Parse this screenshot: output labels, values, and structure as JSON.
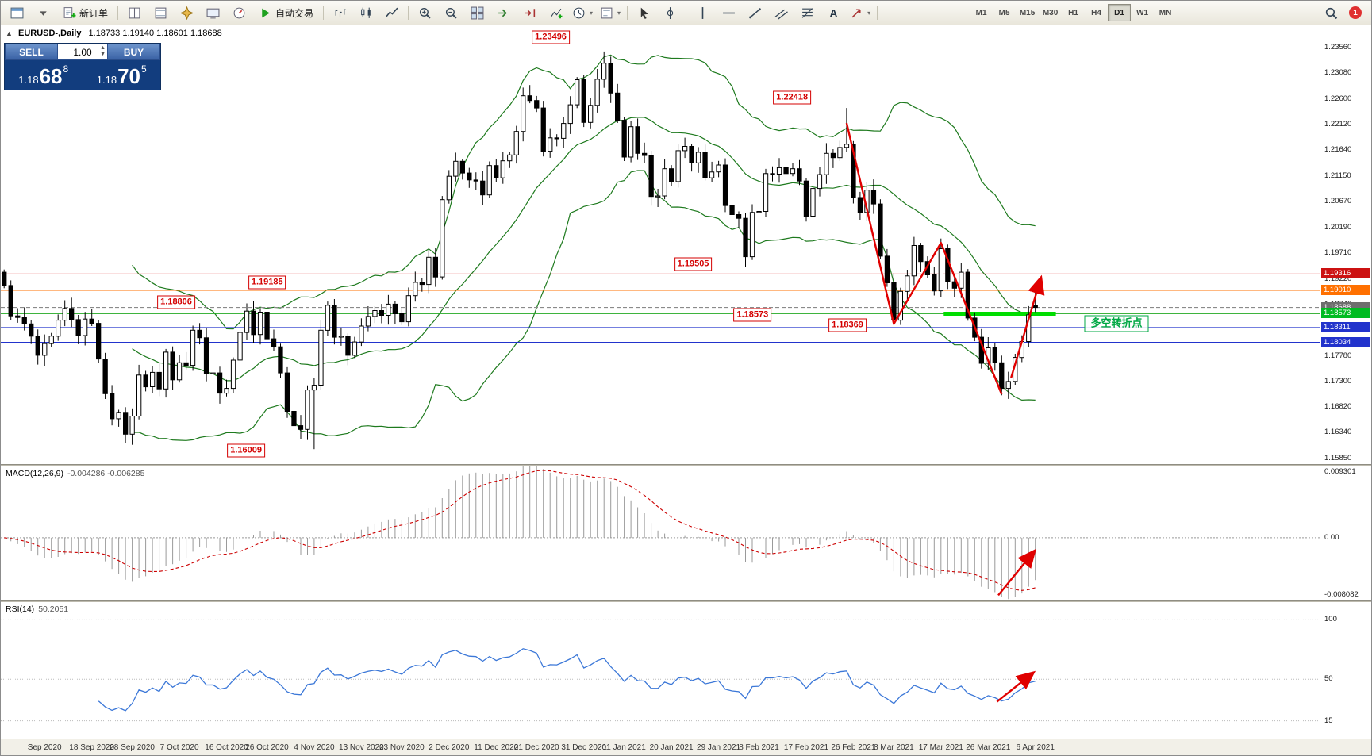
{
  "toolbar": {
    "new_order_label": "新订单",
    "autotrade_label": "自动交易",
    "items": [
      {
        "name": "chart-window-button",
        "icon": "window"
      },
      {
        "name": "profiles-dropdown",
        "icon": "chevron"
      },
      {
        "name": "new-order-button",
        "icon": "neworder",
        "label": "新订单"
      },
      {
        "name": "sep"
      },
      {
        "name": "market-watch-button",
        "icon": "grid"
      },
      {
        "name": "data-window-button",
        "icon": "datawin"
      },
      {
        "name": "navigator-button",
        "icon": "navigator"
      },
      {
        "name": "terminal-button",
        "icon": "terminal"
      },
      {
        "name": "strategy-tester-button",
        "icon": "tester"
      },
      {
        "name": "autotrade-button",
        "icon": "play",
        "label": "自动交易"
      },
      {
        "name": "sep"
      },
      {
        "name": "bar-chart-button",
        "icon": "bars"
      },
      {
        "name": "candle-chart-button",
        "icon": "candles"
      },
      {
        "name": "line-chart-button",
        "icon": "linechart"
      },
      {
        "name": "sep"
      },
      {
        "name": "zoom-in-button",
        "icon": "zoomin"
      },
      {
        "name": "zoom-out-button",
        "icon": "zoomout"
      },
      {
        "name": "tile-windows-button",
        "icon": "tile"
      },
      {
        "name": "auto-scroll-button",
        "icon": "scroll"
      },
      {
        "name": "chart-shift-button",
        "icon": "shift"
      },
      {
        "name": "indicators-button",
        "icon": "indplus"
      },
      {
        "name": "periods-dropdown",
        "icon": "clock",
        "dropdown": true
      },
      {
        "name": "templates-dropdown",
        "icon": "template",
        "dropdown": true
      },
      {
        "name": "sep"
      },
      {
        "name": "cursor-button",
        "icon": "cursor"
      },
      {
        "name": "crosshair-button",
        "icon": "crosshair"
      },
      {
        "name": "sep"
      },
      {
        "name": "vertical-line-button",
        "icon": "vline"
      },
      {
        "name": "horizontal-line-button",
        "icon": "hline"
      },
      {
        "name": "trendline-button",
        "icon": "tline"
      },
      {
        "name": "channel-button",
        "icon": "channel"
      },
      {
        "name": "fibonacci-button",
        "icon": "fibo"
      },
      {
        "name": "text-button",
        "icon": "text"
      },
      {
        "name": "arrows-dropdown",
        "icon": "arrowtool",
        "dropdown": true
      },
      {
        "name": "sep"
      }
    ],
    "timeframes": [
      "M1",
      "M5",
      "M15",
      "M30",
      "H1",
      "H4",
      "D1",
      "W1",
      "MN"
    ],
    "active_timeframe": "D1",
    "right_items": [
      {
        "name": "search-button",
        "icon": "magnifier"
      },
      {
        "name": "notification-badge",
        "text": "1"
      }
    ]
  },
  "chart_header": {
    "symbol_label": "EURUSD-,Daily",
    "ohlc_text": "1.18733 1.19140 1.18601 1.18688"
  },
  "trade_panel": {
    "sell_label": "SELL",
    "buy_label": "BUY",
    "volume": "1.00",
    "sell_price": {
      "base": "1.18",
      "pips": "68",
      "pipette": "8"
    },
    "buy_price": {
      "base": "1.18",
      "pips": "70",
      "pipette": "5"
    }
  },
  "chart_data": {
    "main": {
      "type": "candlestick",
      "symbol": "EURUSD",
      "period": "Daily",
      "pmin": 1.1575,
      "pmax": 1.2398,
      "first_open": 1.1935,
      "closes": [
        1.191,
        1.1853,
        1.185,
        1.1838,
        1.1815,
        1.1779,
        1.1801,
        1.1815,
        1.1845,
        1.1867,
        1.1846,
        1.1816,
        1.1847,
        1.1839,
        1.1772,
        1.1707,
        1.166,
        1.1672,
        1.1631,
        1.1665,
        1.1742,
        1.172,
        1.1747,
        1.1716,
        1.1785,
        1.1733,
        1.1765,
        1.176,
        1.1826,
        1.1812,
        1.1745,
        1.1746,
        1.1708,
        1.1717,
        1.177,
        1.1822,
        1.1862,
        1.1818,
        1.186,
        1.181,
        1.1795,
        1.1746,
        1.1674,
        1.1647,
        1.164,
        1.1714,
        1.1723,
        1.1826,
        1.1873,
        1.1813,
        1.1815,
        1.1779,
        1.1804,
        1.1834,
        1.1852,
        1.1863,
        1.1854,
        1.1875,
        1.1857,
        1.1842,
        1.1891,
        1.1916,
        1.1912,
        1.1963,
        1.1926,
        1.2071,
        1.2115,
        1.2143,
        1.2121,
        1.2108,
        1.2106,
        1.208,
        1.2135,
        1.2112,
        1.2144,
        1.2155,
        1.2199,
        1.2266,
        1.2257,
        1.2243,
        1.2162,
        1.2187,
        1.2186,
        1.2214,
        1.2249,
        1.2296,
        1.2216,
        1.2248,
        1.2297,
        1.2327,
        1.2271,
        1.222,
        1.2151,
        1.2208,
        1.2158,
        1.2154,
        1.2077,
        1.2078,
        1.2129,
        1.2105,
        1.2163,
        1.2171,
        1.214,
        1.216,
        1.2112,
        1.2123,
        1.2136,
        1.206,
        1.2043,
        1.2036,
        1.1964,
        1.2047,
        1.2049,
        1.212,
        1.2119,
        1.2131,
        1.212,
        1.2129,
        1.2106,
        1.204,
        1.2092,
        1.2118,
        1.2158,
        1.215,
        1.2169,
        1.2175,
        1.2075,
        1.2047,
        1.2089,
        1.2063,
        1.1965,
        1.1915,
        1.1845,
        1.1899,
        1.1928,
        1.1985,
        1.1955,
        1.193,
        1.19,
        1.1979,
        1.1917,
        1.1905,
        1.1935,
        1.1849,
        1.1813,
        1.1764,
        1.1793,
        1.1765,
        1.1717,
        1.173,
        1.1775,
        1.1805,
        1.1855,
        1.1869
      ],
      "overrides": {
        "46": {
          "low": 1.1603
        },
        "89": {
          "high": 1.2349
        },
        "125": {
          "high": 1.2243
        },
        "132": {
          "low": 1.1843
        },
        "133": {
          "low": 1.1836
        },
        "148": {
          "low": 1.1704
        },
        "153": {
          "open": 1.18733,
          "high": 1.1914,
          "low": 1.18601,
          "close": 1.18688
        }
      },
      "bands": {
        "period": 20,
        "deviation": 2,
        "color": "#1E7A1E"
      },
      "levels": [
        {
          "price": 1.19316,
          "color": "#D40000",
          "style": "solid"
        },
        {
          "price": 1.1901,
          "color": "#FF7000",
          "style": "solid"
        },
        {
          "price": 1.18688,
          "color": "#8A8A8A",
          "style": "dash"
        },
        {
          "price": 1.18573,
          "color": "#22AA22",
          "style": "solid"
        },
        {
          "price": 1.18311,
          "color": "#2233CC",
          "style": "solid"
        },
        {
          "price": 1.18034,
          "color": "#2233CC",
          "style": "solid"
        }
      ],
      "zone": {
        "price": 1.1857,
        "xf1": 0.715,
        "xf2": 0.8,
        "color": "#00DD00"
      },
      "trend": {
        "color": "#E00000",
        "points": [
          [
            125,
            1.2215
          ],
          [
            132,
            1.1838
          ],
          [
            139,
            1.199
          ],
          [
            148,
            1.1706
          ]
        ],
        "arrow": [
          [
            149.4,
            1.1737
          ],
          [
            153.8,
            1.1923
          ]
        ]
      },
      "labels": [
        {
          "text": "1.23496",
          "xf": 0.417,
          "price": 1.2375
        },
        {
          "text": "1.22418",
          "xf": 0.6,
          "price": 1.2262
        },
        {
          "text": "1.19505",
          "xf": 0.525,
          "price": 1.195
        },
        {
          "text": "1.19185",
          "xf": 0.202,
          "price": 1.1916
        },
        {
          "text": "1.18806",
          "xf": 0.133,
          "price": 1.1878
        },
        {
          "text": "1.18573",
          "xf": 0.57,
          "price": 1.1855
        },
        {
          "text": "1.18369",
          "xf": 0.642,
          "price": 1.1835
        },
        {
          "text": "1.16009",
          "xf": 0.186,
          "price": 1.1601
        }
      ],
      "annotation": {
        "text": "多空转折点",
        "xf": 0.846,
        "price": 1.1838
      },
      "axis_ticks": [
        "1.23560",
        "1.23080",
        "1.22600",
        "1.22120",
        "1.21640",
        "1.21150",
        "1.20670",
        "1.20190",
        "1.19710",
        "1.19220",
        "1.18740",
        "1.18260",
        "1.17780",
        "1.17300",
        "1.16820",
        "1.16340",
        "1.15850"
      ],
      "axis_boxed": [
        {
          "text": "1.19316",
          "price": 1.19316,
          "bg": "#CC1111"
        },
        {
          "text": "1.19010",
          "price": 1.1901,
          "bg": "#FF7000"
        },
        {
          "text": "1.18688",
          "price": 1.18688,
          "bg": "#6E6E6E"
        },
        {
          "text": "1.18573",
          "price": 1.18573,
          "bg": "#00BB22"
        },
        {
          "text": "1.18311",
          "price": 1.18311,
          "bg": "#2233CC"
        },
        {
          "text": "1.18034",
          "price": 1.18034,
          "bg": "#2233CC"
        }
      ]
    },
    "macd": {
      "type": "macd-histogram",
      "label": "MACD(12,26,9)",
      "values_label": "-0.004286 -0.006285",
      "fast": 12,
      "slow": 26,
      "signal": 9,
      "vmax": 0.009301,
      "vmin": -0.008082,
      "axis": [
        {
          "text": "0.009301",
          "v": 0.009301
        },
        {
          "text": "0.00",
          "v": 0
        },
        {
          "text": "-0.008082",
          "v": -0.008082
        }
      ],
      "arrow": [
        [
          147.5,
          -0.0075
        ],
        [
          152.8,
          -0.0018
        ]
      ],
      "histogram_color": "#9A9A9A",
      "signal_color": "#CC0000"
    },
    "rsi": {
      "type": "line",
      "label": "RSI(14)",
      "value_label": "50.2051",
      "period": 14,
      "range": [
        0,
        115
      ],
      "levels": [
        100,
        50,
        15
      ],
      "axis": [
        {
          "text": "100",
          "v": 100
        },
        {
          "text": "50",
          "v": 50
        },
        {
          "text": "15",
          "v": 15
        }
      ],
      "arrow": [
        [
          147.3,
          31
        ],
        [
          152.6,
          55
        ]
      ],
      "line_color": "#3C78D8"
    },
    "dates": [
      {
        "label": "Sep 2020",
        "i": 6
      },
      {
        "label": "18 Sep 2020",
        "i": 13
      },
      {
        "label": "28 Sep 2020",
        "i": 19
      },
      {
        "label": "7 Oct 2020",
        "i": 26
      },
      {
        "label": "16 Oct 2020",
        "i": 33
      },
      {
        "label": "26 Oct 2020",
        "i": 39
      },
      {
        "label": "4 Nov 2020",
        "i": 46
      },
      {
        "label": "13 Nov 2020",
        "i": 53
      },
      {
        "label": "23 Nov 2020",
        "i": 59
      },
      {
        "label": "2 Dec 2020",
        "i": 66
      },
      {
        "label": "11 Dec 2020",
        "i": 73
      },
      {
        "label": "21 Dec 2020",
        "i": 79
      },
      {
        "label": "31 Dec 2020",
        "i": 86
      },
      {
        "label": "11 Jan 2021",
        "i": 92
      },
      {
        "label": "20 Jan 2021",
        "i": 99
      },
      {
        "label": "29 Jan 2021",
        "i": 106
      },
      {
        "label": "8 Feb 2021",
        "i": 112
      },
      {
        "label": "17 Feb 2021",
        "i": 119
      },
      {
        "label": "26 Feb 2021",
        "i": 126
      },
      {
        "label": "8 Mar 2021",
        "i": 132
      },
      {
        "label": "17 Mar 2021",
        "i": 139
      },
      {
        "label": "26 Mar 2021",
        "i": 146
      },
      {
        "label": "6 Apr 2021",
        "i": 153
      }
    ]
  }
}
